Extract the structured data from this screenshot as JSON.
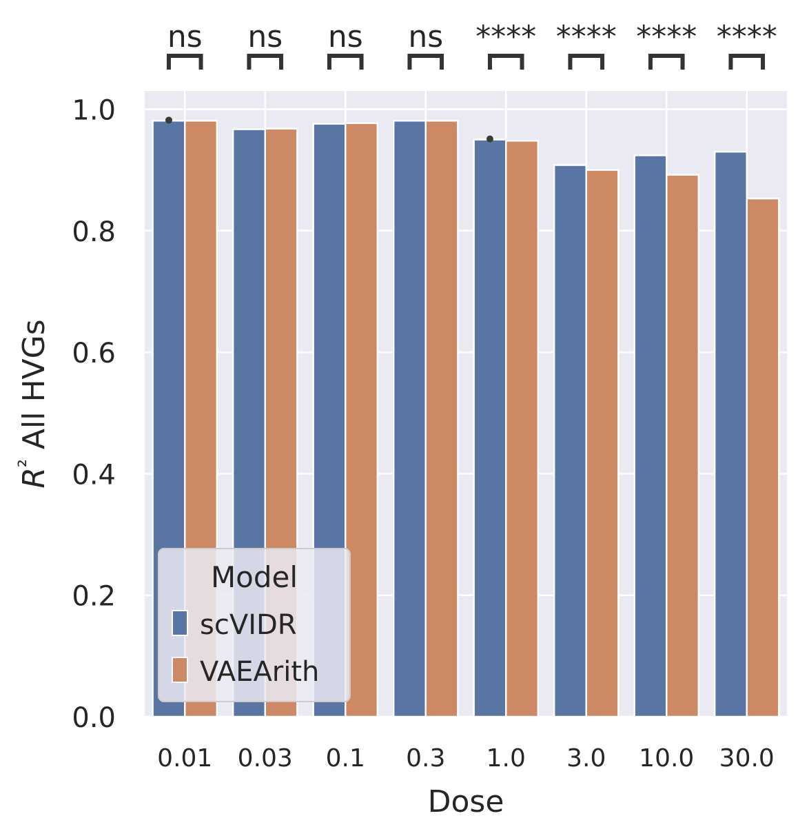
{
  "chart_data": {
    "type": "bar",
    "xlabel": "Dose",
    "ylabel": "R² All HVGs",
    "categories": [
      "0.01",
      "0.03",
      "0.1",
      "0.3",
      "1.0",
      "3.0",
      "10.0",
      "30.0"
    ],
    "series": [
      {
        "name": "scVIDR",
        "color": "#5875a4",
        "values": [
          0.981,
          0.967,
          0.976,
          0.981,
          0.95,
          0.908,
          0.924,
          0.93
        ]
      },
      {
        "name": "VAEArith",
        "color": "#cc8963",
        "values": [
          0.981,
          0.968,
          0.977,
          0.981,
          0.948,
          0.9,
          0.892,
          0.853
        ]
      }
    ],
    "error_bar_tops": [
      {
        "category": "0.01",
        "series": "scVIDR",
        "value": 0.982
      },
      {
        "category": "1.0",
        "series": "scVIDR",
        "value": 0.951
      }
    ],
    "significance": [
      "ns",
      "ns",
      "ns",
      "ns",
      "****",
      "****",
      "****",
      "****"
    ],
    "yticks": [
      "0.0",
      "0.2",
      "0.4",
      "0.6",
      "0.8",
      "1.0"
    ],
    "ylim": [
      0,
      1.03
    ],
    "legend": {
      "title": "Model",
      "placement": "lower-left"
    },
    "grid": true
  }
}
